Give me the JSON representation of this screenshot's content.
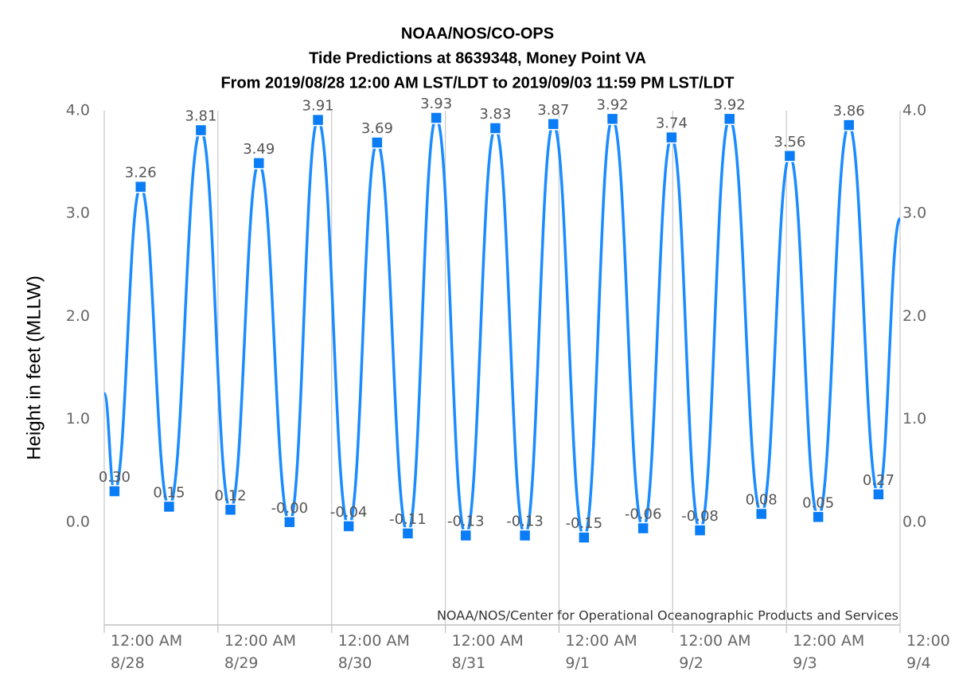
{
  "chart_data": {
    "type": "line",
    "title": [
      "NOAA/NOS/CO-OPS",
      "Tide Predictions at 8639348, Money Point VA",
      "From 2019/08/28 12:00 AM LST/LDT to 2019/09/03 11:59 PM LST/LDT"
    ],
    "y_label": "Height in feet (MLLW)",
    "credit": "NOAA/NOS/Center for Operational Oceanographic Products and Services",
    "xlim": [
      0,
      7
    ],
    "xticks": [
      {
        "value": 0,
        "label": "12:00 AM\n8/28"
      },
      {
        "value": 1,
        "label": "12:00 AM\n8/29"
      },
      {
        "value": 2,
        "label": "12:00 AM\n8/30"
      },
      {
        "value": 3,
        "label": "12:00 AM\n8/31"
      },
      {
        "value": 4,
        "label": "12:00 AM\n9/1"
      },
      {
        "value": 5,
        "label": "12:00 AM\n9/2"
      },
      {
        "value": 6,
        "label": "12:00 AM\n9/3"
      },
      {
        "value": 7,
        "label": "12:00\n9/4"
      }
    ],
    "ylim": [
      -1,
      4
    ],
    "yticks": [
      {
        "value": 0,
        "label": "0.0"
      },
      {
        "value": 1,
        "label": "1.0"
      },
      {
        "value": 2,
        "label": "2.0"
      },
      {
        "value": 3,
        "label": "3.0"
      },
      {
        "value": 4,
        "label": "4.0"
      }
    ],
    "y2lim": [
      -1,
      4
    ],
    "y2ticks": [
      {
        "value": 0,
        "label": "0.0"
      },
      {
        "value": 1,
        "label": "1.0"
      },
      {
        "value": 2,
        "label": "2.0"
      },
      {
        "value": 3,
        "label": "3.0"
      },
      {
        "value": 4,
        "label": "4.0"
      }
    ],
    "grid": true,
    "series": [
      {
        "color": "#1a8cff",
        "x": [
          0,
          0.09,
          0.32,
          0.57,
          0.85,
          1.11,
          1.36,
          1.63,
          1.88,
          2.15,
          2.4,
          2.67,
          2.92,
          3.18,
          3.44,
          3.7,
          3.95,
          4.22,
          4.47,
          4.74,
          4.99,
          5.24,
          5.5,
          5.78,
          6.03,
          6.28,
          6.55,
          6.81,
          7
        ],
        "values": [
          1.25,
          0.3,
          3.26,
          0.15,
          3.81,
          0.12,
          3.49,
          0,
          3.91,
          -0.04,
          3.69,
          -0.11,
          3.93,
          -0.13,
          3.83,
          -0.13,
          3.87,
          -0.15,
          3.92,
          -0.06,
          3.74,
          -0.08,
          3.92,
          0.08,
          3.56,
          0.05,
          3.86,
          0.27,
          2.95
        ],
        "value_labels": [
          null,
          "0.30",
          "3.26",
          "0.15",
          "3.81",
          "0.12",
          "3.49",
          "-0.00",
          "3.91",
          "-0.04",
          "3.69",
          "-0.11",
          "3.93",
          "-0.13",
          "3.83",
          "-0.13",
          "3.87",
          "-0.15",
          "3.92",
          "-0.06",
          "3.74",
          "-0.08",
          "3.92",
          "0.08",
          "3.56",
          "0.05",
          "3.86",
          "0.27",
          null
        ]
      }
    ]
  }
}
